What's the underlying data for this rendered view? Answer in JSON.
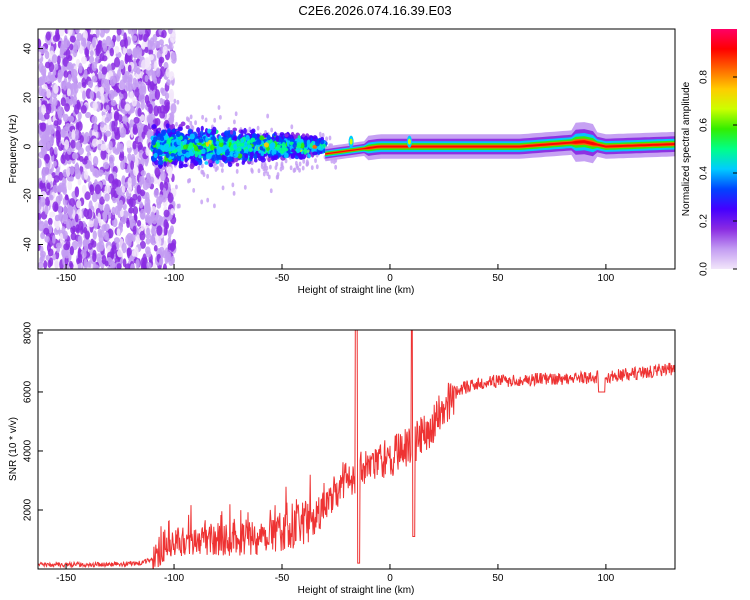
{
  "title": "C2E6.2026.074.16.39.E03",
  "chart_data": [
    {
      "type": "heatmap",
      "xlabel": "Height of straight line (km)",
      "ylabel": "Frequency (Hz)",
      "xlim": [
        -163,
        132
      ],
      "ylim": [
        -50,
        48
      ],
      "xticks": [
        -150,
        -100,
        -50,
        0,
        50,
        100
      ],
      "yticks": [
        -40,
        -20,
        0,
        20,
        40
      ],
      "colorbar": {
        "label": "Normalized spectral amplitude",
        "range": [
          0,
          1
        ],
        "ticks": [
          "0.0",
          "0.2",
          "0.4",
          "0.6",
          "0.8"
        ],
        "colors": [
          "#f2e6fa",
          "#c39cf2",
          "#8a2be2",
          "#4400ff",
          "#0044ff",
          "#00ccff",
          "#00ff88",
          "#33ee00",
          "#ccff00",
          "#ffcc00",
          "#ff6600",
          "#ff0000",
          "#ff0066"
        ]
      },
      "regions": [
        {
          "x": [
            -163,
            -100
          ],
          "freq_spread": 48,
          "level": 0.12,
          "desc": "broadband noise"
        },
        {
          "x": [
            -110,
            -30
          ],
          "freq_spread": 12,
          "level": 0.3
        },
        {
          "x": [
            -30,
            132
          ],
          "freq_spread": 2,
          "level": 0.9
        }
      ],
      "ridge": {
        "freq": 0,
        "x_points": [
          -30,
          -5,
          25,
          60,
          90,
          100,
          132
        ],
        "freq_points": [
          -3,
          0,
          0,
          0,
          2,
          0,
          1
        ]
      },
      "secondary_peaks": [
        {
          "x": 9,
          "freq": 2
        },
        {
          "x": -18,
          "freq": 2
        }
      ]
    },
    {
      "type": "line",
      "xlabel": "Height of straight line (km)",
      "ylabel": "SNR (10 * v/v)",
      "xlim": [
        -163,
        132
      ],
      "ylim": [
        0,
        8100
      ],
      "xticks": [
        -150,
        -100,
        -50,
        0,
        50,
        100
      ],
      "yticks": [
        2000,
        4000,
        6000,
        8000
      ],
      "color": "#ee3333",
      "trend": {
        "x": [
          -163,
          -130,
          -115,
          -108,
          -100,
          -60,
          -45,
          -35,
          -30,
          -22,
          -10,
          0,
          10,
          18,
          25,
          32,
          45,
          60,
          95,
          100,
          115,
          132
        ],
        "y": [
          150,
          150,
          200,
          400,
          900,
          1100,
          1400,
          1700,
          2300,
          3000,
          3500,
          3800,
          4200,
          4700,
          5500,
          6100,
          6350,
          6400,
          6500,
          6500,
          6650,
          6800
        ]
      },
      "spikes": [
        {
          "x": -15.5,
          "y": 8100
        },
        {
          "x": 10.5,
          "y": 8100
        },
        {
          "x": -14.5,
          "y": 200
        },
        {
          "x": 11,
          "y": 1100
        },
        {
          "x": 98,
          "y": 6000
        }
      ]
    }
  ]
}
